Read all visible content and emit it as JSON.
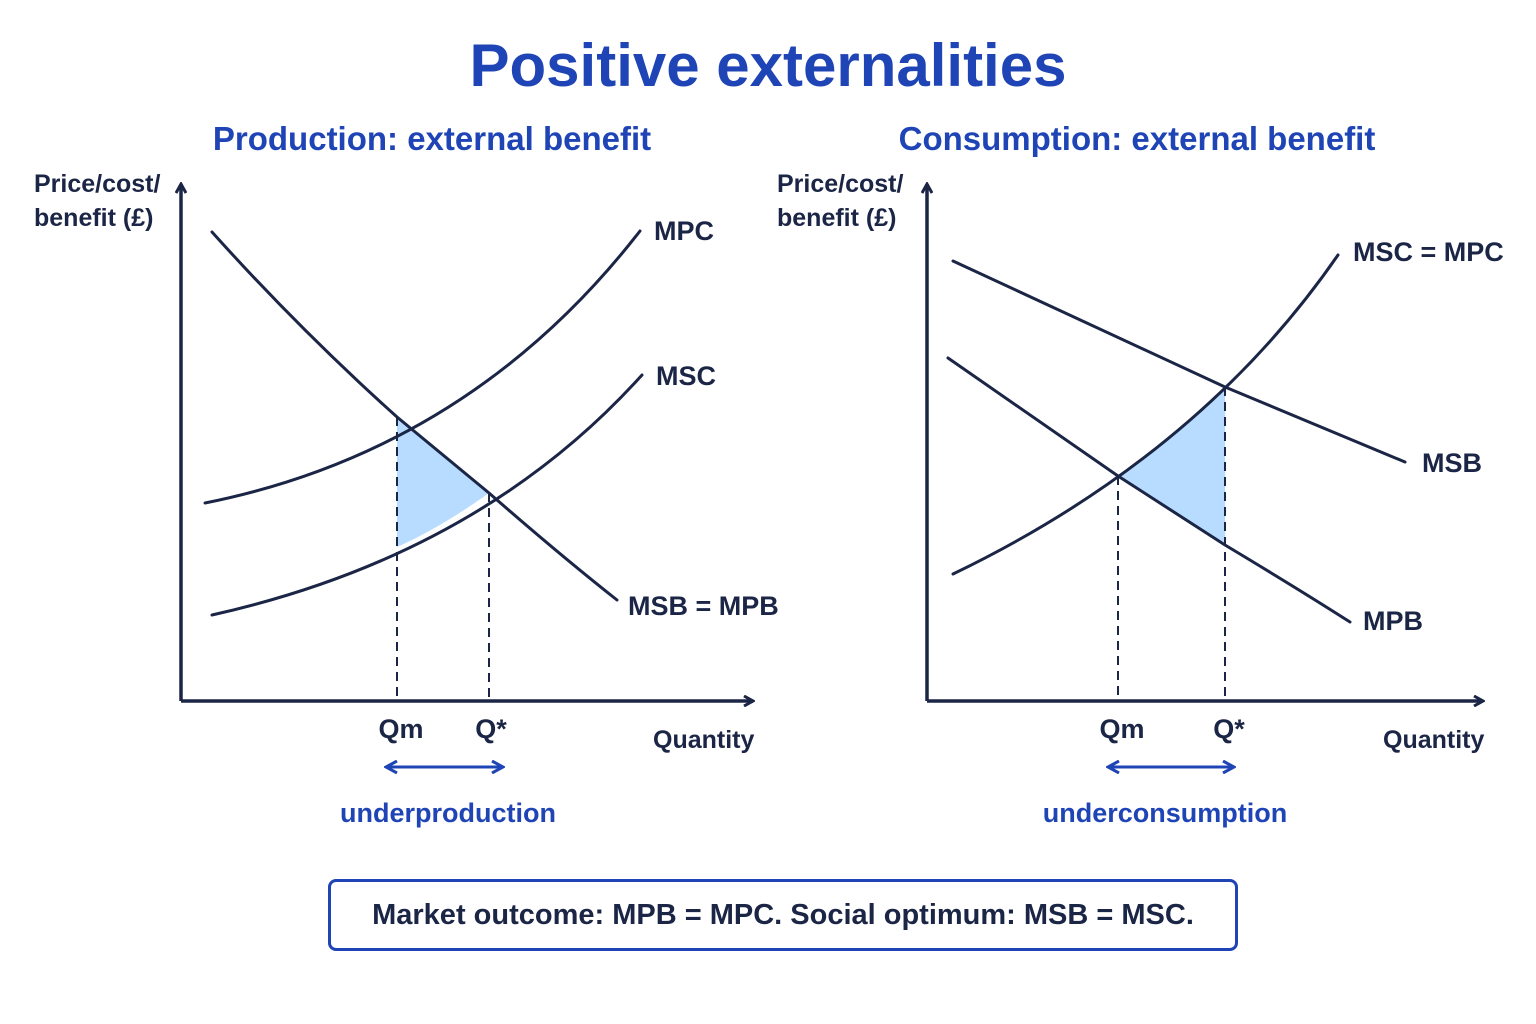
{
  "title": "Positive externalities",
  "panels": [
    {
      "title": "Production: external benefit",
      "ylabel_line1": "Price/cost/",
      "ylabel_line2": "benefit (£)",
      "xlabel": "Quantity",
      "curves": [
        "MPC",
        "MSC",
        "MSB = MPB"
      ],
      "q_market": "Qm",
      "q_optimum": "Q*",
      "gap_label": "underproduction"
    },
    {
      "title": "Consumption: external benefit",
      "ylabel_line1": "Price/cost/",
      "ylabel_line2": "benefit (£)",
      "xlabel": "Quantity",
      "curves": [
        "MSC = MPC",
        "MSB",
        "MPB"
      ],
      "q_market": "Qm",
      "q_optimum": "Q*",
      "gap_label": "underconsumption"
    }
  ],
  "note": "Market outcome: MPB = MPC. Social optimum: MSB = MSC.",
  "colors": {
    "accent": "#1f44b5",
    "ink": "#1b2545",
    "shade": "#b8dcff"
  }
}
